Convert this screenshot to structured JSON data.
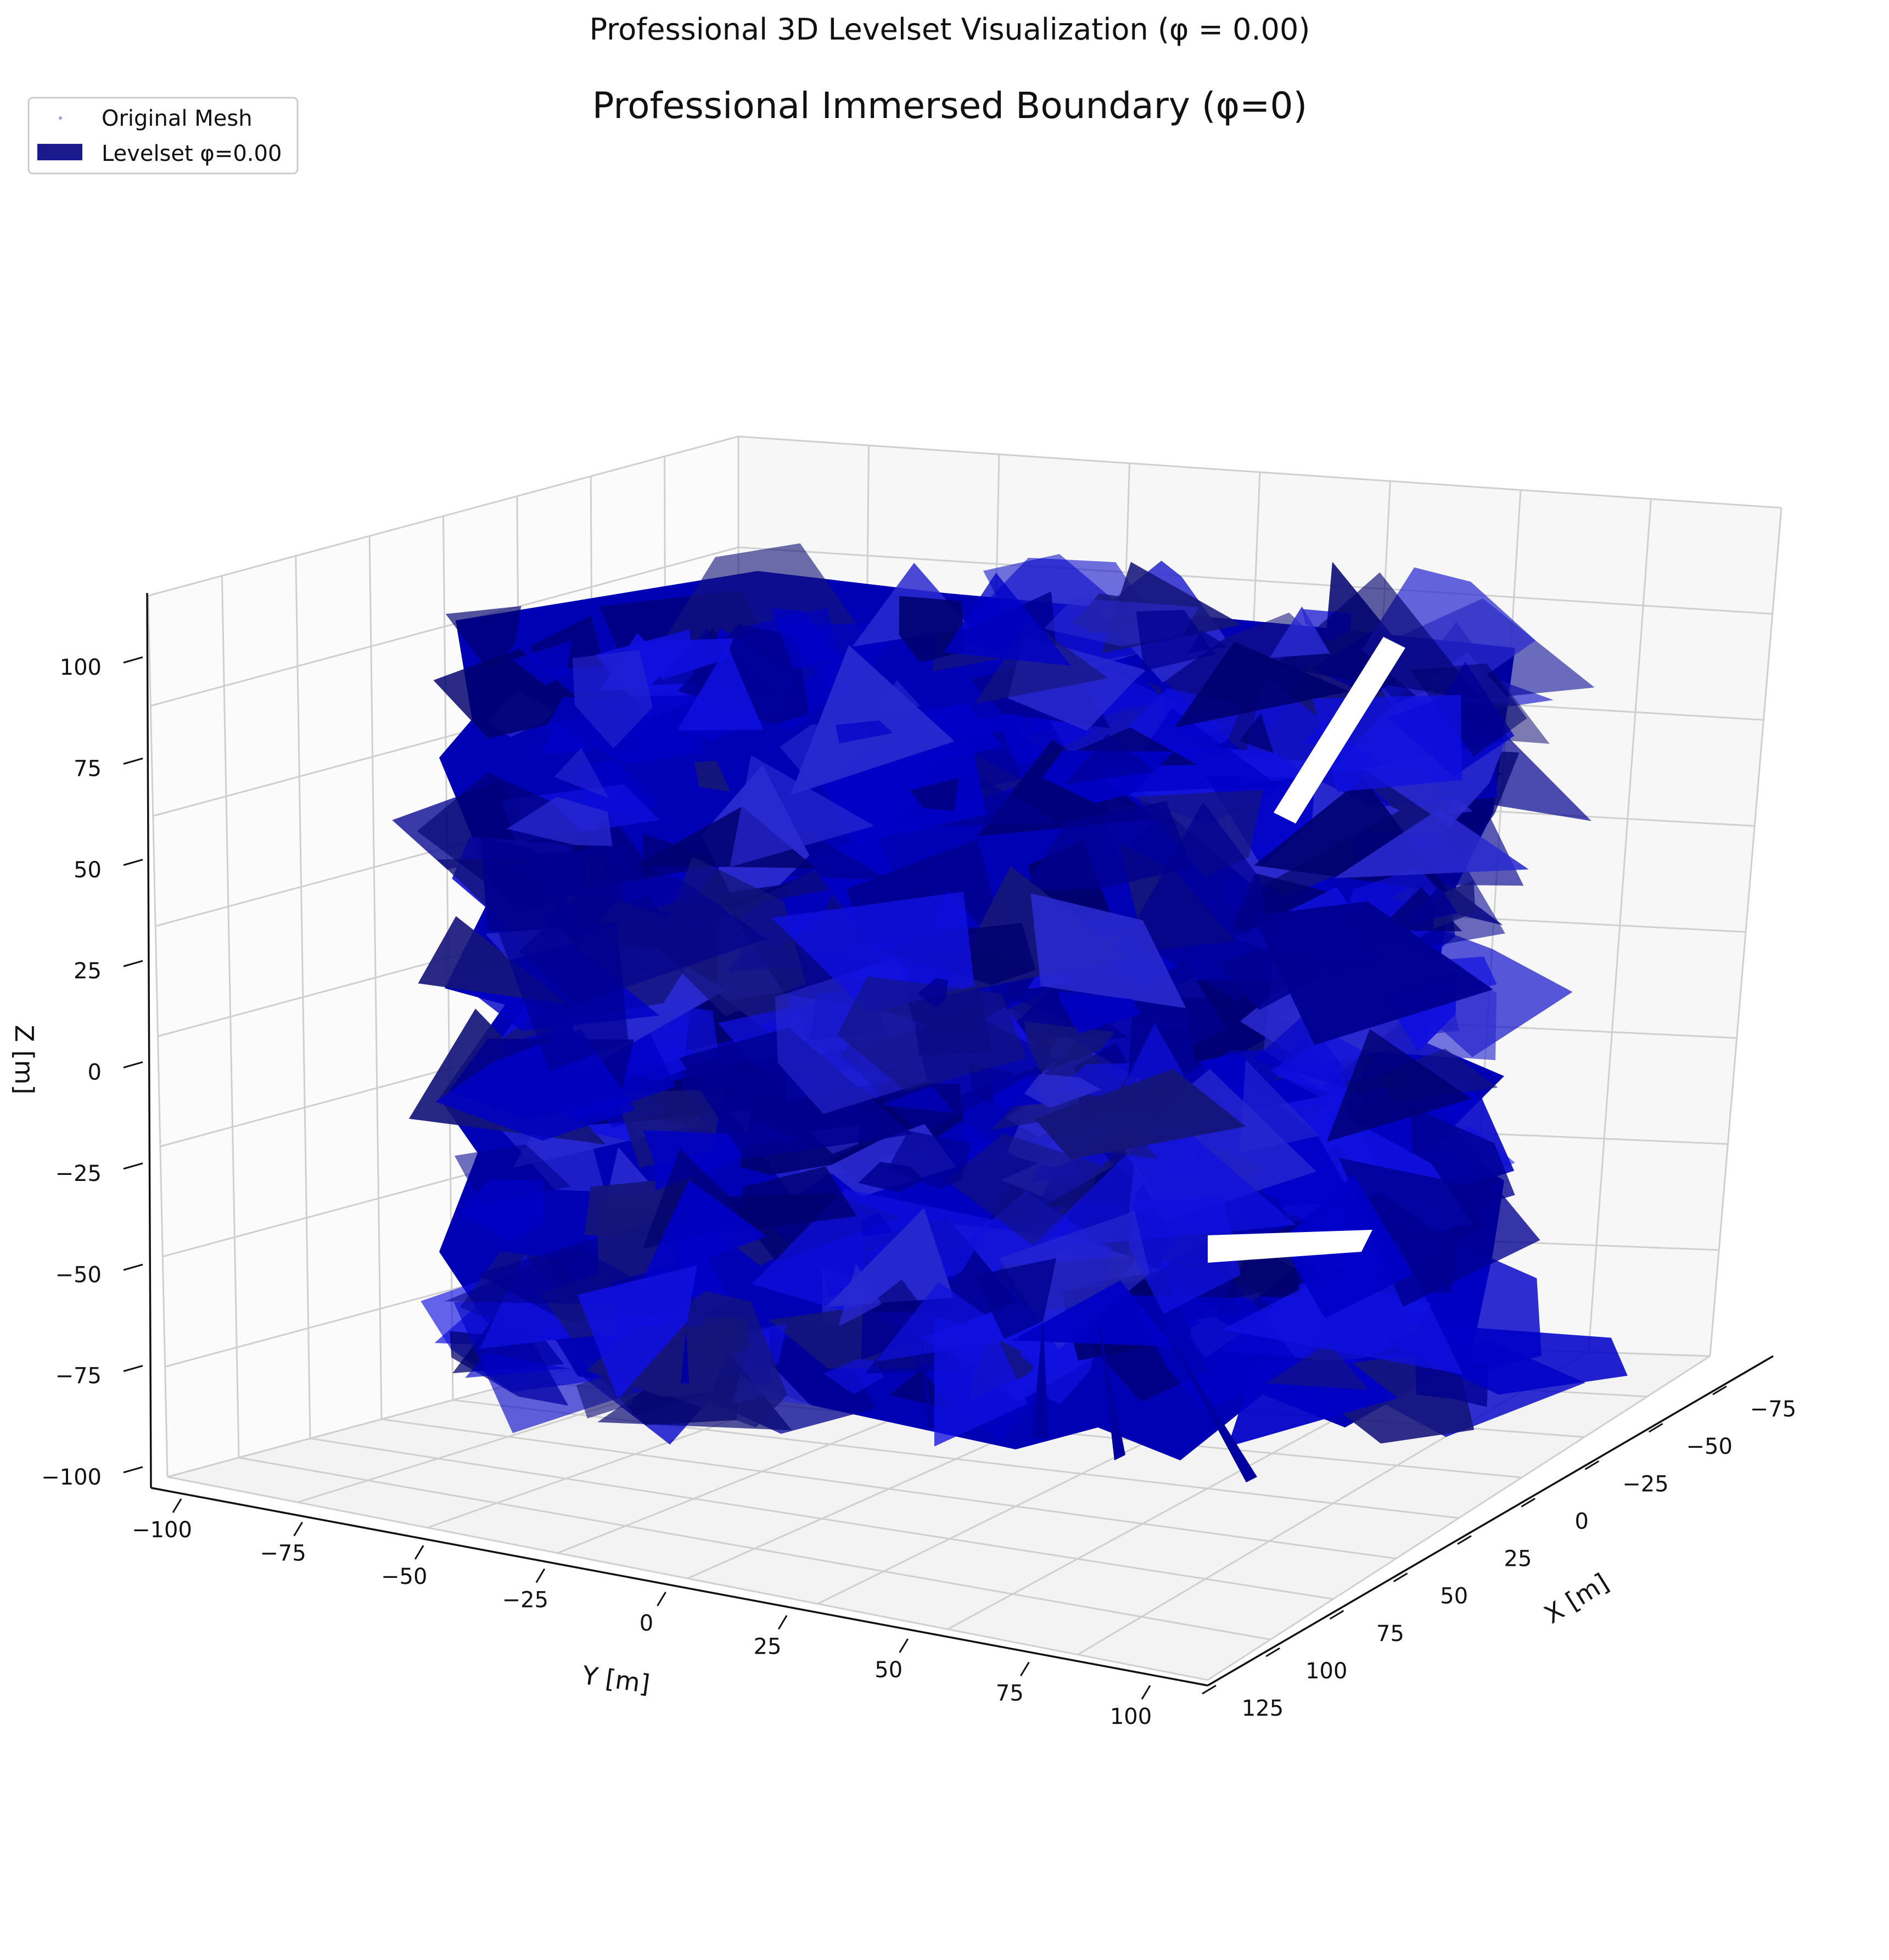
{
  "figure": {
    "suptitle": "Professional 3D Levelset Visualization (φ = 0.00)"
  },
  "chart_data": {
    "type": "surface3d",
    "title": "Professional Immersed Boundary (φ=0)",
    "xlabel": "X [m]",
    "ylabel": "Y [m]",
    "zlabel": "Z [m]",
    "xlim": [
      -85,
      130
    ],
    "ylim": [
      -105,
      105
    ],
    "zlim": [
      -105,
      110
    ],
    "x_ticks": [
      "−75",
      "−50",
      "−25",
      "0",
      "25",
      "50",
      "75",
      "100",
      "125"
    ],
    "y_ticks": [
      "−100",
      "−75",
      "−50",
      "−25",
      "0",
      "25",
      "50",
      "75",
      "100"
    ],
    "z_ticks": [
      "100",
      "75",
      "50",
      "25",
      "0",
      "−25",
      "−50",
      "−75",
      "−100"
    ],
    "grid": true,
    "legend": {
      "location": "upper-left",
      "entries": [
        {
          "label": "Original Mesh",
          "marker": "point",
          "color": "#9aa0d8"
        },
        {
          "label": "Levelset φ=0.00",
          "marker": "patch",
          "color": "#1a1a8c"
        }
      ]
    },
    "series": [
      {
        "name": "Levelset φ=0.00",
        "kind": "isosurface",
        "level": 0.0,
        "colors": [
          "#0000c8",
          "#1010e0",
          "#00006e",
          "#000090",
          "#2a2ad0",
          "#15157a"
        ]
      }
    ]
  }
}
